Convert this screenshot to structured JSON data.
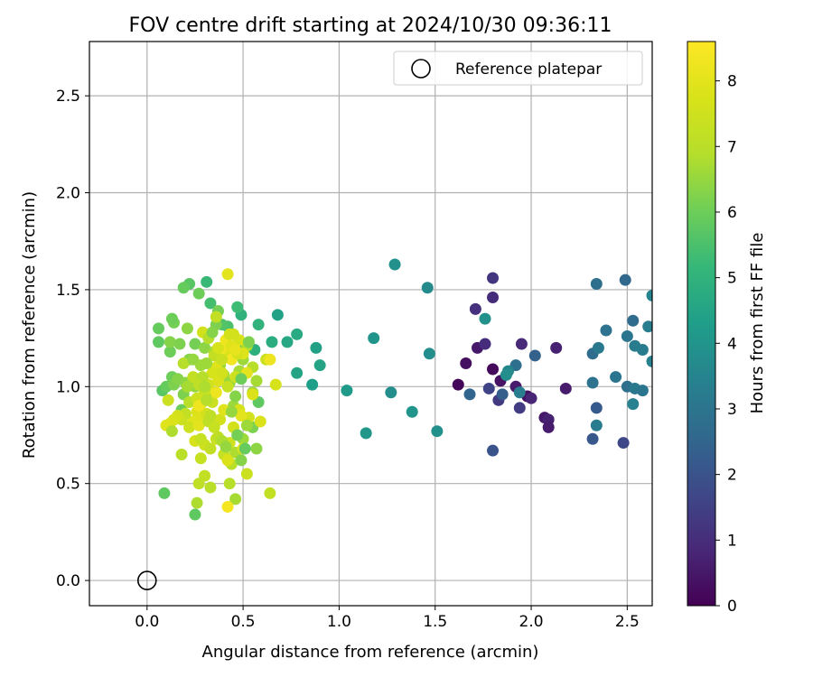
{
  "chart_data": {
    "type": "scatter",
    "title": "FOV centre drift starting at 2024/10/30 09:36:11",
    "xlabel": "Angular distance from reference (arcmin)",
    "ylabel": "Rotation from reference (arcmin)",
    "xlim": [
      -0.3,
      2.63
    ],
    "ylim": [
      -0.13,
      2.78
    ],
    "xticks": [
      0.0,
      0.5,
      1.0,
      1.5,
      2.0,
      2.5
    ],
    "yticks": [
      0.0,
      0.5,
      1.0,
      1.5,
      2.0,
      2.5
    ],
    "xtick_labels": [
      "0.0",
      "0.5",
      "1.0",
      "1.5",
      "2.0",
      "2.5"
    ],
    "ytick_labels": [
      "0.0",
      "0.5",
      "1.0",
      "1.5",
      "2.0",
      "2.5"
    ],
    "grid": true,
    "legend": {
      "placement": "top-right",
      "label": "Reference platepar"
    },
    "reference_point": {
      "x": 0.0,
      "y": 0.0
    },
    "colorbar": {
      "label": "Hours from first FF file",
      "colormap": "viridis",
      "range": [
        0,
        8.6
      ],
      "ticks": [
        0,
        1,
        2,
        3,
        4,
        5,
        6,
        7,
        8
      ],
      "tick_labels": [
        "0",
        "1",
        "2",
        "3",
        "4",
        "5",
        "6",
        "7",
        "8"
      ]
    },
    "points": [
      [
        1.62,
        1.01,
        0.1
      ],
      [
        1.66,
        1.12,
        0.3
      ],
      [
        1.72,
        1.2,
        0.5
      ],
      [
        1.8,
        1.09,
        0.2
      ],
      [
        1.84,
        1.03,
        0.4
      ],
      [
        1.92,
        1.0,
        0.6
      ],
      [
        1.98,
        0.95,
        0.3
      ],
      [
        2.0,
        0.94,
        0.8
      ],
      [
        1.95,
        1.22,
        0.9
      ],
      [
        2.13,
        1.2,
        0.7
      ],
      [
        2.18,
        0.99,
        0.6
      ],
      [
        2.07,
        0.84,
        0.5
      ],
      [
        2.09,
        0.83,
        0.7
      ],
      [
        2.09,
        0.79,
        0.6
      ],
      [
        1.76,
        1.22,
        1.0
      ],
      [
        1.71,
        1.4,
        1.1
      ],
      [
        1.8,
        1.56,
        1.2
      ],
      [
        1.8,
        1.46,
        1.0
      ],
      [
        1.83,
        0.93,
        1.3
      ],
      [
        1.94,
        0.89,
        1.4
      ],
      [
        1.78,
        0.99,
        1.6
      ],
      [
        1.8,
        0.67,
        2.0
      ],
      [
        1.68,
        0.96,
        2.5
      ],
      [
        1.85,
        0.96,
        2.3
      ],
      [
        1.92,
        1.11,
        2.8
      ],
      [
        1.94,
        0.97,
        3.3
      ],
      [
        1.88,
        1.08,
        3.6
      ],
      [
        1.87,
        1.06,
        3.8
      ],
      [
        1.76,
        1.35,
        3.9
      ],
      [
        2.02,
        1.16,
        2.4
      ],
      [
        2.32,
        1.17,
        2.7
      ],
      [
        2.32,
        1.02,
        2.9
      ],
      [
        2.34,
        0.89,
        2.2
      ],
      [
        2.32,
        0.73,
        2.1
      ],
      [
        2.48,
        0.71,
        1.7
      ],
      [
        2.34,
        1.53,
        2.8
      ],
      [
        2.35,
        1.2,
        3.1
      ],
      [
        2.39,
        1.29,
        2.9
      ],
      [
        2.44,
        1.05,
        3.0
      ],
      [
        2.49,
        1.55,
        2.6
      ],
      [
        2.5,
        1.0,
        2.8
      ],
      [
        2.5,
        1.26,
        3.0
      ],
      [
        2.53,
        1.34,
        2.7
      ],
      [
        2.54,
        1.21,
        3.2
      ],
      [
        2.53,
        0.91,
        3.4
      ],
      [
        2.54,
        0.99,
        3.1
      ],
      [
        2.58,
        0.98,
        3.0
      ],
      [
        2.58,
        1.19,
        3.2
      ],
      [
        2.61,
        1.31,
        3.3
      ],
      [
        2.63,
        1.47,
        3.5
      ],
      [
        2.63,
        1.13,
        3.4
      ],
      [
        2.34,
        0.8,
        3.2
      ],
      [
        1.29,
        1.63,
        3.9
      ],
      [
        1.46,
        1.51,
        3.7
      ],
      [
        1.47,
        1.17,
        3.8
      ],
      [
        1.51,
        0.77,
        3.9
      ],
      [
        1.38,
        0.87,
        4.0
      ],
      [
        1.27,
        0.97,
        3.8
      ],
      [
        1.18,
        1.25,
        4.0
      ],
      [
        1.14,
        0.76,
        4.1
      ],
      [
        1.04,
        0.98,
        4.2
      ],
      [
        0.86,
        1.01,
        4.3
      ],
      [
        0.9,
        1.11,
        4.5
      ],
      [
        0.88,
        1.2,
        4.4
      ],
      [
        0.78,
        1.07,
        4.5
      ],
      [
        0.78,
        1.27,
        4.7
      ],
      [
        0.73,
        1.23,
        4.6
      ],
      [
        0.68,
        1.37,
        4.4
      ],
      [
        0.65,
        1.23,
        4.8
      ],
      [
        0.58,
        1.32,
        5.0
      ],
      [
        0.56,
        1.19,
        4.9
      ],
      [
        0.51,
        1.2,
        5.2
      ],
      [
        0.49,
        1.37,
        5.0
      ],
      [
        0.47,
        1.41,
        5.3
      ],
      [
        0.42,
        1.31,
        5.5
      ],
      [
        0.39,
        1.32,
        5.6
      ],
      [
        0.33,
        1.43,
        5.4
      ],
      [
        0.31,
        1.54,
        5.2
      ],
      [
        0.22,
        1.53,
        5.7
      ],
      [
        0.19,
        1.51,
        5.9
      ],
      [
        0.27,
        1.48,
        6.0
      ],
      [
        0.37,
        1.39,
        6.1
      ],
      [
        0.36,
        1.32,
        6.2
      ],
      [
        0.06,
        1.23,
        5.8
      ],
      [
        0.06,
        1.3,
        5.9
      ],
      [
        0.12,
        1.18,
        6.0
      ],
      [
        0.14,
        1.33,
        6.1
      ],
      [
        0.13,
        1.35,
        6.0
      ],
      [
        0.12,
        1.23,
        6.3
      ],
      [
        0.17,
        1.22,
        6.2
      ],
      [
        0.21,
        1.3,
        6.4
      ],
      [
        0.25,
        1.22,
        6.1
      ],
      [
        0.08,
        0.98,
        5.7
      ],
      [
        0.1,
        1.0,
        5.9
      ],
      [
        0.13,
        1.05,
        6.0
      ],
      [
        0.14,
        1.01,
        6.2
      ],
      [
        0.16,
        1.04,
        6.3
      ],
      [
        0.09,
        0.45,
        5.8
      ],
      [
        0.18,
        0.88,
        6.0
      ],
      [
        0.19,
        0.96,
        6.2
      ],
      [
        0.2,
        1.02,
        6.4
      ],
      [
        0.22,
        1.14,
        6.3
      ],
      [
        0.25,
        1.0,
        6.5
      ],
      [
        0.28,
        1.11,
        6.6
      ],
      [
        0.3,
        1.2,
        6.4
      ],
      [
        0.33,
        0.96,
        6.5
      ],
      [
        0.35,
        1.18,
        6.7
      ],
      [
        0.38,
        1.11,
        6.6
      ],
      [
        0.4,
        1.06,
        6.8
      ],
      [
        0.43,
        1.02,
        6.5
      ],
      [
        0.45,
        0.9,
        6.6
      ],
      [
        0.48,
        1.08,
        6.7
      ],
      [
        0.5,
        1.14,
        6.6
      ],
      [
        0.52,
        1.21,
        6.8
      ],
      [
        0.55,
        1.1,
        6.9
      ],
      [
        0.57,
        1.03,
        6.7
      ],
      [
        0.55,
        0.97,
        6.6
      ],
      [
        0.58,
        0.92,
        5.8
      ],
      [
        0.55,
        0.79,
        6.2
      ],
      [
        0.57,
        0.68,
        6.4
      ],
      [
        0.5,
        0.73,
        6.6
      ],
      [
        0.46,
        0.66,
        6.8
      ],
      [
        0.44,
        0.6,
        7.0
      ],
      [
        0.43,
        0.5,
        6.9
      ],
      [
        0.46,
        0.42,
        6.7
      ],
      [
        0.42,
        0.38,
        8.4
      ],
      [
        0.33,
        0.48,
        7.0
      ],
      [
        0.3,
        0.54,
        7.2
      ],
      [
        0.26,
        0.4,
        6.8
      ],
      [
        0.25,
        0.34,
        5.8
      ],
      [
        0.27,
        0.5,
        7.1
      ],
      [
        0.28,
        0.63,
        7.3
      ],
      [
        0.3,
        0.7,
        7.5
      ],
      [
        0.33,
        0.68,
        7.2
      ],
      [
        0.36,
        0.73,
        7.4
      ],
      [
        0.38,
        0.83,
        7.6
      ],
      [
        0.4,
        0.65,
        7.3
      ],
      [
        0.42,
        0.62,
        7.8
      ],
      [
        0.43,
        0.71,
        7.5
      ],
      [
        0.45,
        0.79,
        7.6
      ],
      [
        0.48,
        0.88,
        7.7
      ],
      [
        0.5,
        0.68,
        7.9
      ],
      [
        0.52,
        0.55,
        7.4
      ],
      [
        0.53,
        0.84,
        7.6
      ],
      [
        0.55,
        0.96,
        7.8
      ],
      [
        0.52,
        1.07,
        8.0
      ],
      [
        0.5,
        1.17,
        7.9
      ],
      [
        0.48,
        1.24,
        7.7
      ],
      [
        0.45,
        1.27,
        7.6
      ],
      [
        0.43,
        1.17,
        7.8
      ],
      [
        0.41,
        1.21,
        8.1
      ],
      [
        0.38,
        1.19,
        8.3
      ],
      [
        0.36,
        1.1,
        7.9
      ],
      [
        0.34,
        1.07,
        7.7
      ],
      [
        0.32,
        1.01,
        7.5
      ],
      [
        0.3,
        0.97,
        7.3
      ],
      [
        0.28,
        0.91,
        7.6
      ],
      [
        0.26,
        0.87,
        7.8
      ],
      [
        0.24,
        0.82,
        7.9
      ],
      [
        0.22,
        0.79,
        7.5
      ],
      [
        0.2,
        0.86,
        7.2
      ],
      [
        0.18,
        0.83,
        7.4
      ],
      [
        0.16,
        0.85,
        7.6
      ],
      [
        0.14,
        0.83,
        7.7
      ],
      [
        0.12,
        0.81,
        7.8
      ],
      [
        0.1,
        0.8,
        7.9
      ],
      [
        0.11,
        0.93,
        7.4
      ],
      [
        0.13,
        0.77,
        6.8
      ],
      [
        0.18,
        0.65,
        7.0
      ],
      [
        0.25,
        0.72,
        7.7
      ],
      [
        0.27,
        0.8,
        8.0
      ],
      [
        0.29,
        0.85,
        7.9
      ],
      [
        0.31,
        0.86,
        7.6
      ],
      [
        0.34,
        0.92,
        7.4
      ],
      [
        0.36,
        0.97,
        8.2
      ],
      [
        0.37,
        1.03,
        7.8
      ],
      [
        0.39,
        1.07,
        7.6
      ],
      [
        0.4,
        0.88,
        7.9
      ],
      [
        0.42,
        1.0,
        7.3
      ],
      [
        0.44,
        1.14,
        8.4
      ],
      [
        0.46,
        1.05,
        7.5
      ],
      [
        0.47,
        1.17,
        7.7
      ],
      [
        0.49,
        0.85,
        8.0
      ],
      [
        0.32,
        0.82,
        7.1
      ],
      [
        0.28,
        0.73,
        7.3
      ],
      [
        0.22,
        0.92,
        7.0
      ],
      [
        0.19,
        1.12,
        6.9
      ],
      [
        0.24,
        1.05,
        7.2
      ],
      [
        0.26,
        0.94,
        7.5
      ],
      [
        0.27,
        0.9,
        8.3
      ],
      [
        0.29,
        1.28,
        7.6
      ],
      [
        0.32,
        1.25,
        6.9
      ],
      [
        0.35,
        1.16,
        7.2
      ],
      [
        0.37,
        1.2,
        7.7
      ],
      [
        0.39,
        1.14,
        7.4
      ],
      [
        0.41,
        1.24,
        8.2
      ],
      [
        0.43,
        1.27,
        7.6
      ],
      [
        0.44,
        1.21,
        7.9
      ],
      [
        0.46,
        1.19,
        8.1
      ],
      [
        0.42,
        1.58,
        8.0
      ],
      [
        0.36,
        1.36,
        7.2
      ],
      [
        0.34,
        1.28,
        6.3
      ],
      [
        0.31,
        1.12,
        6.6
      ],
      [
        0.29,
        1.05,
        6.9
      ],
      [
        0.27,
        1.01,
        7.1
      ],
      [
        0.31,
        0.93,
        6.9
      ],
      [
        0.33,
        0.85,
        7.1
      ],
      [
        0.35,
        0.79,
        7.3
      ],
      [
        0.37,
        0.74,
        7.1
      ],
      [
        0.39,
        0.72,
        6.8
      ],
      [
        0.41,
        0.69,
        6.5
      ],
      [
        0.59,
        0.82,
        7.8
      ],
      [
        0.52,
        0.8,
        6.6
      ],
      [
        0.62,
        1.14,
        7.4
      ],
      [
        0.64,
        1.14,
        8.2
      ],
      [
        0.67,
        1.01,
        7.7
      ],
      [
        0.64,
        0.45,
        7.2
      ],
      [
        0.53,
        1.23,
        6.2
      ],
      [
        0.49,
        1.04,
        6.0
      ],
      [
        0.46,
        0.95,
        6.3
      ],
      [
        0.44,
        0.87,
        6.5
      ],
      [
        0.47,
        0.75,
        6.1
      ],
      [
        0.51,
        0.68,
        5.9
      ],
      [
        0.49,
        0.62,
        6.3
      ],
      [
        0.21,
        1.0,
        6.7
      ],
      [
        0.24,
        1.14,
        6.5
      ],
      [
        0.3,
        1.0,
        6.8
      ]
    ]
  }
}
